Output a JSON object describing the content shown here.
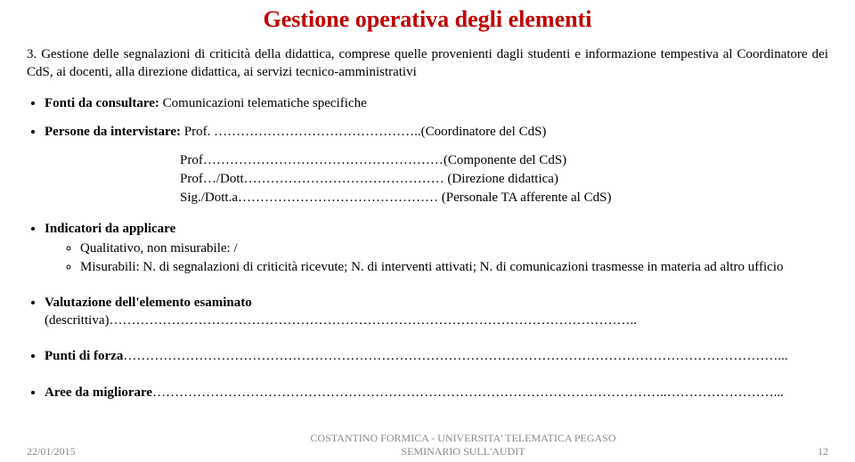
{
  "title": "Gestione operativa degli elementi",
  "intro": "3. Gestione delle segnalazioni di criticità della didattica, comprese quelle provenienti dagli studenti e informazione tempestiva al Coordinatore dei CdS, ai docenti, alla direzione didattica, ai servizi tecnico-amministrativi",
  "fonti_label": "Fonti da consultare: ",
  "fonti_text": "Comunicazioni telematiche specifiche",
  "persone_label": "Persone da intervistare: ",
  "persone_lines": {
    "l1a": "Prof. ………………………………………..(Coordinatore del CdS)",
    "l2": "Prof………………………………………………(Componente del CdS)",
    "l3": "Prof…/Dott……………………………………… (Direzione didattica)",
    "l4": "Sig./Dott.a……………………………………… (Personale TA afferente al CdS)"
  },
  "indicatori_label": "Indicatori da applicare",
  "indic_sub1": "Qualitativo, non misurabile: /",
  "indic_sub2": "Misurabili: N. di segnalazioni di criticità ricevute; N. di interventi attivati; N. di comunicazioni trasmesse in materia ad altro ufficio",
  "valutazione_label": "Valutazione dell'elemento esaminato ",
  "valutazione_text": "(descrittiva)………………………………………………………………………………………………………..",
  "punti_label": "Punti  di forza",
  "punti_text": "…………………………………………………………………………………………………………………………………...",
  "aree_label": "Aree da migliorare",
  "aree_text": "……………………………………………………………………………………………………..……………………...",
  "footer": {
    "date": "22/01/2015",
    "center1": "COSTANTINO FORMICA - UNIVERSITA' TELEMATICA PEGASO",
    "center2": "SEMINARIO SULL'AUDIT",
    "page": "12"
  }
}
